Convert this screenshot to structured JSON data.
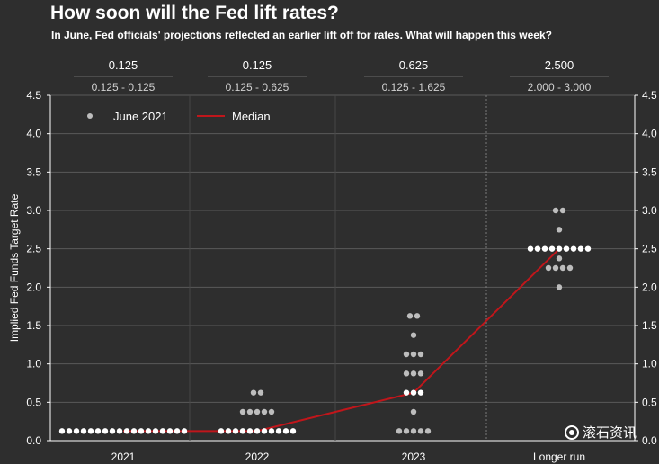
{
  "title": "How soon will the Fed lift rates?",
  "subtitle": "In June, Fed officials' projections reflected an earlier lift off for rates. What will happen this week?",
  "watermark_text": "滚石资讯",
  "colors": {
    "background": "#2e2e2e",
    "grid": "#5a5a5a",
    "dot_white": "#ffffff",
    "dot_grey": "#bdbdbd",
    "median": "#c0161b",
    "text": "#ffffff",
    "range_text": "#d0d0d0"
  },
  "chart_data": {
    "type": "scatter",
    "ylabel": "Implied Fed Funds Target Rate",
    "ylim": [
      0,
      4.5
    ],
    "yticks": [
      "0.0",
      "0.5",
      "1.0",
      "1.5",
      "2.0",
      "2.5",
      "3.0",
      "3.5",
      "4.0",
      "4.5"
    ],
    "categories": [
      "2021",
      "2022",
      "2023",
      "Longer run"
    ],
    "medians_label": [
      "0.125",
      "0.125",
      "0.625",
      "2.500"
    ],
    "ranges_label": [
      "0.125 - 0.125",
      "0.125 - 0.625",
      "0.125 - 1.625",
      "2.000 - 3.000"
    ],
    "legend": [
      {
        "name": "June 2021",
        "kind": "dot"
      },
      {
        "name": "Median",
        "kind": "line"
      }
    ],
    "legend_position": "top-left",
    "grid": true,
    "series": [
      {
        "name": "June 2021",
        "points": [
          {
            "x": "2021",
            "y": 0.125,
            "count": 18
          },
          {
            "x": "2022",
            "y": 0.125,
            "count": 11
          },
          {
            "x": "2022",
            "y": 0.375,
            "count": 5
          },
          {
            "x": "2022",
            "y": 0.625,
            "count": 2
          },
          {
            "x": "2023",
            "y": 0.125,
            "count": 5
          },
          {
            "x": "2023",
            "y": 0.375,
            "count": 1
          },
          {
            "x": "2023",
            "y": 0.625,
            "count": 3
          },
          {
            "x": "2023",
            "y": 0.875,
            "count": 3
          },
          {
            "x": "2023",
            "y": 1.125,
            "count": 3
          },
          {
            "x": "2023",
            "y": 1.375,
            "count": 1
          },
          {
            "x": "2023",
            "y": 1.625,
            "count": 2
          },
          {
            "x": "Longer run",
            "y": 2.0,
            "count": 1
          },
          {
            "x": "Longer run",
            "y": 2.25,
            "count": 4
          },
          {
            "x": "Longer run",
            "y": 2.375,
            "count": 1
          },
          {
            "x": "Longer run",
            "y": 2.5,
            "count": 9
          },
          {
            "x": "Longer run",
            "y": 2.75,
            "count": 1
          },
          {
            "x": "Longer run",
            "y": 3.0,
            "count": 2
          }
        ]
      },
      {
        "name": "Median",
        "values": [
          0.125,
          0.125,
          0.625,
          2.5
        ]
      }
    ]
  }
}
